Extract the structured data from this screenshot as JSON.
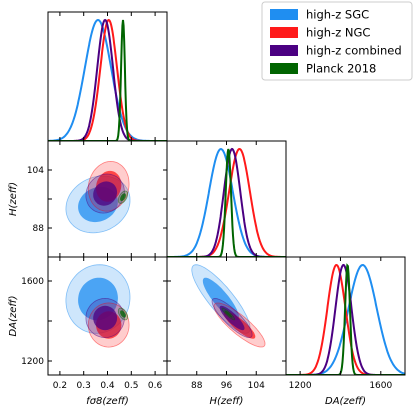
{
  "chart_data": {
    "type": "triangle",
    "description_free": true,
    "legend": {
      "placement": "top-right",
      "entries": [
        {
          "name": "high-z SGC",
          "color": "#1f8ef1"
        },
        {
          "name": "high-z NGC",
          "color": "#ff1a1a"
        },
        {
          "name": "high-z combined",
          "color": "#4b0082"
        },
        {
          "name": "Planck 2018",
          "color": "#006400"
        }
      ]
    },
    "params": [
      {
        "key": "fs8",
        "label": "fσ8(zeff)",
        "lim": [
          0.15,
          0.65
        ],
        "ticks": [
          0.2,
          0.3,
          0.4,
          0.5,
          0.6
        ]
      },
      {
        "key": "H",
        "label": "H(zeff)",
        "lim": [
          80,
          112
        ],
        "ticks": [
          88,
          96,
          104
        ]
      },
      {
        "key": "DA",
        "label": "DA(zeff)",
        "lim": [
          1130,
          1720
        ],
        "ticks": [
          1200,
          1400,
          1600
        ]
      }
    ],
    "axis_labels": {
      "x": [
        "fσ8(zeff)",
        "H(zeff)",
        "DA(zeff)"
      ],
      "y": [
        "H(zeff)",
        "DA(zeff)"
      ]
    },
    "tick_labels": {
      "fs8": [
        "0.2",
        "0.3",
        "0.4",
        "0.5",
        "0.6"
      ],
      "H": [
        "88",
        "96",
        "104"
      ],
      "DA": [
        "1200",
        "1600"
      ],
      "H_y": [
        "88",
        "104"
      ],
      "DA_y": [
        "1200",
        "1600"
      ]
    },
    "series": [
      {
        "name": "high-z SGC",
        "color": "#1f8ef1",
        "mean": {
          "fs8": 0.36,
          "H": 94.5,
          "DA": 1510
        },
        "sd": {
          "fs8": 0.055,
          "H": 3.2,
          "DA": 70
        },
        "corr": {
          "fs8_H": 0.15,
          "fs8_DA": 0.05,
          "H_DA": -0.85
        }
      },
      {
        "name": "high-z NGC",
        "color": "#ff1a1a",
        "mean": {
          "fs8": 0.405,
          "H": 99.5,
          "DA": 1380
        },
        "sd": {
          "fs8": 0.035,
          "H": 2.8,
          "DA": 45
        },
        "corr": {
          "fs8_H": 0.1,
          "fs8_DA": 0.0,
          "H_DA": -0.85
        }
      },
      {
        "name": "high-z combined",
        "color": "#4b0082",
        "mean": {
          "fs8": 0.39,
          "H": 97.5,
          "DA": 1415
        },
        "sd": {
          "fs8": 0.033,
          "H": 2.2,
          "DA": 40
        },
        "corr": {
          "fs8_H": 0.1,
          "fs8_DA": 0.0,
          "H_DA": -0.85
        }
      },
      {
        "name": "Planck 2018",
        "color": "#006400",
        "mean": {
          "fs8": 0.465,
          "H": 96.5,
          "DA": 1435
        },
        "sd": {
          "fs8": 0.008,
          "H": 0.7,
          "DA": 12
        },
        "corr": {
          "fs8_H": 0.5,
          "fs8_DA": -0.5,
          "H_DA": -0.9
        }
      }
    ]
  }
}
